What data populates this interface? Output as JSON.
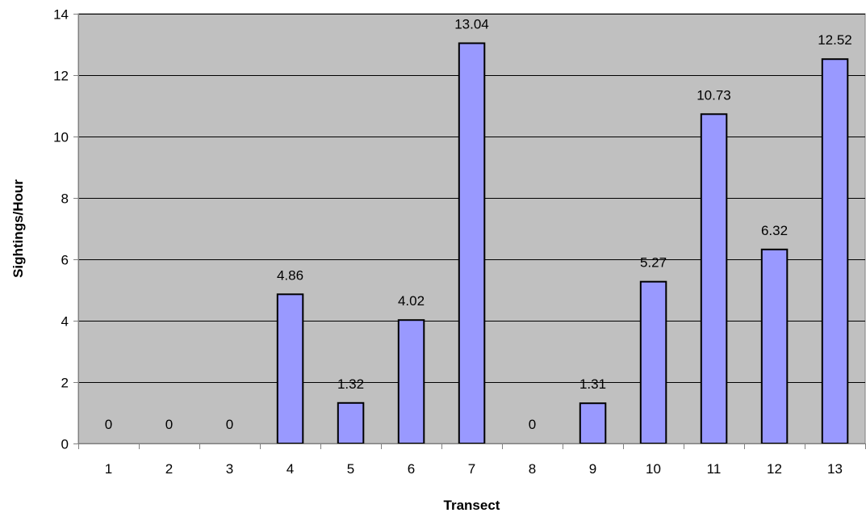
{
  "chart_data": {
    "type": "bar",
    "categories": [
      "1",
      "2",
      "3",
      "4",
      "5",
      "6",
      "7",
      "8",
      "9",
      "10",
      "11",
      "12",
      "13"
    ],
    "values": [
      0,
      0,
      0,
      4.86,
      1.32,
      4.02,
      13.04,
      0,
      1.31,
      5.27,
      10.73,
      6.32,
      12.52
    ],
    "data_labels": [
      "0",
      "0",
      "0",
      "4.86",
      "1.32",
      "4.02",
      "13.04",
      "0",
      "1.31",
      "5.27",
      "10.73",
      "6.32",
      "12.52"
    ],
    "xlabel": "Transect",
    "ylabel": "Sightings/Hour",
    "ylim": [
      0,
      14
    ],
    "yticks": [
      0,
      2,
      4,
      6,
      8,
      10,
      12,
      14
    ],
    "ytick_labels": [
      "0",
      "2",
      "4",
      "6",
      "8",
      "10",
      "12",
      "14"
    ],
    "grid": true,
    "legend": "none",
    "colors": {
      "plot_background": "#c0c0c0",
      "bar_fill": "#9999ff",
      "bar_stroke": "#000000",
      "gridline": "#000000",
      "axis": "#808080"
    }
  }
}
